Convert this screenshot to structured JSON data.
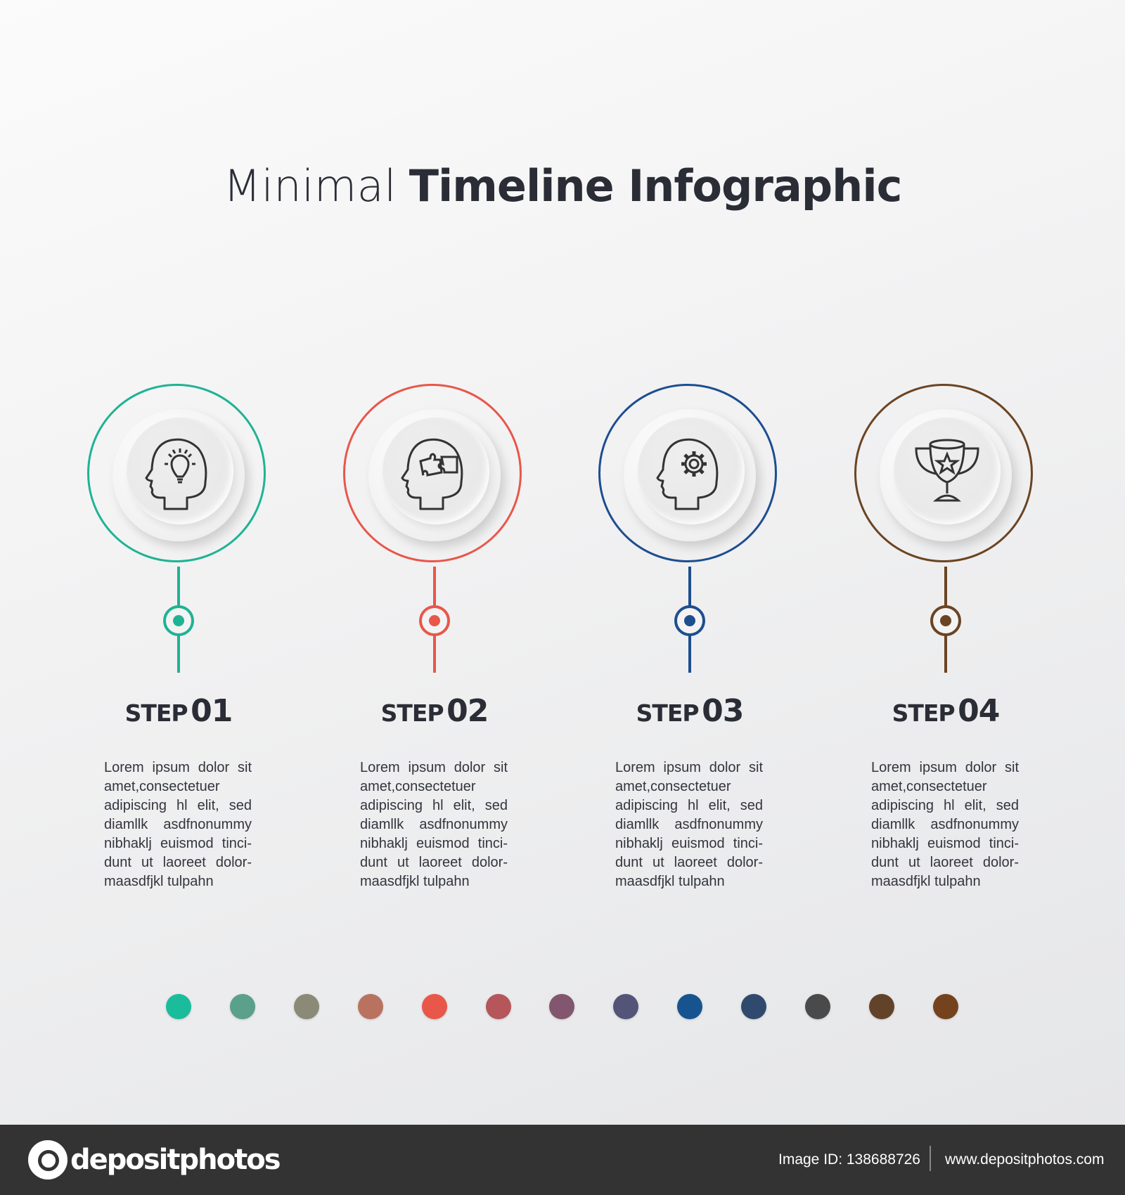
{
  "title": {
    "light": "Minimal",
    "bold": "Timeline Infographic"
  },
  "steps": [
    {
      "word": "STEP",
      "number": "01",
      "color": "#1fb394",
      "icon": "head-lightbulb-icon",
      "text": "Lorem ipsum dolor sit amet,consectetuer adipiscing hl elit, sed diamllk asdfnonummy nibhaklj euismod tinci-dunt ut laoreet dolor-maasdfjkl tulpahn"
    },
    {
      "word": "STEP",
      "number": "02",
      "color": "#e8574a",
      "icon": "head-puzzle-icon",
      "text": "Lorem ipsum dolor sit amet,consectetuer adipiscing hl elit, sed diamllk asdfnonummy nibhaklj euismod tinci-dunt ut laoreet dolor-maasdfjkl tulpahn"
    },
    {
      "word": "STEP",
      "number": "03",
      "color": "#1d4e8f",
      "icon": "head-gear-icon",
      "text": "Lorem ipsum dolor sit amet,consectetuer adipiscing hl elit, sed diamllk asdfnonummy nibhaklj euismod tinci-dunt ut laoreet dolor-maasdfjkl tulpahn"
    },
    {
      "word": "STEP",
      "number": "04",
      "color": "#6b4423",
      "icon": "trophy-star-icon",
      "text": "Lorem ipsum dolor sit amet,consectetuer adipiscing hl elit, sed diamllk asdfnonummy nibhaklj euismod tinci-dunt ut laoreet dolor-maasdfjkl tulpahn"
    }
  ],
  "palette": [
    "#1abc9c",
    "#5aa08a",
    "#8a8a76",
    "#b97260",
    "#e8574a",
    "#b5565a",
    "#82566e",
    "#545378",
    "#17548f",
    "#2f4a6c",
    "#4a4a4a",
    "#62432a",
    "#74431e"
  ],
  "footer": {
    "brand": "depositphotos",
    "image_id": "Image ID: 138688726",
    "url": "www.depositphotos.com"
  }
}
